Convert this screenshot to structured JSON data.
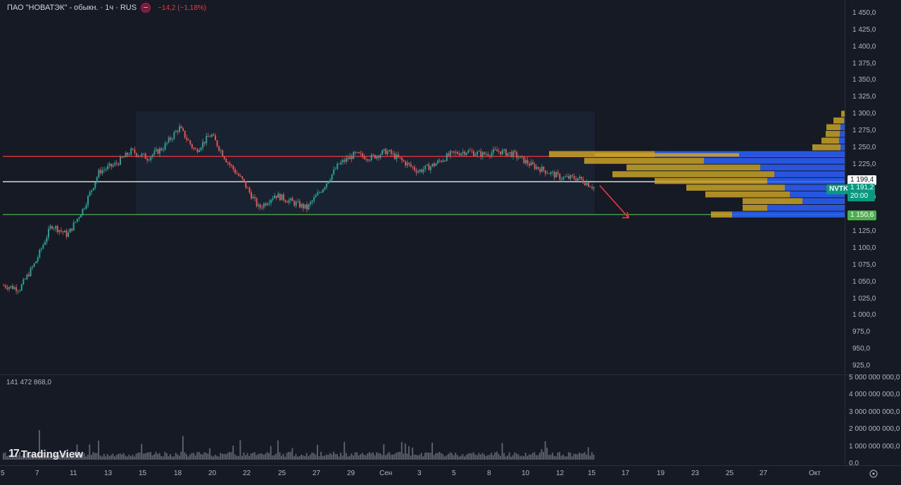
{
  "legend": {
    "title": "ПАО \"НОВАТЭК\" - обыкн. · 1ч · RUS",
    "change": "−14,2 (−1,18%)"
  },
  "volume_legend": "141 472 868,0",
  "price_axis": [
    "1 450,0",
    "1 425,0",
    "1 400,0",
    "1 375,0",
    "1 350,0",
    "1 325,0",
    "1 300,0",
    "1 275,0",
    "1 250,0",
    "1 225,0",
    "1 200,0",
    "1 175,0",
    "1 150,0",
    "1 125,0",
    "1 100,0",
    "1 075,0",
    "1 050,0",
    "1 025,0",
    "1 000,0",
    "975,0",
    "950,0",
    "925,0"
  ],
  "volume_axis": [
    "5 000 000 000,0",
    "4 000 000 000,0",
    "3 000 000 000,0",
    "2 000 000 000,0",
    "1 000 000 000,0",
    "0,0"
  ],
  "time_axis": [
    "5",
    "7",
    "11",
    "13",
    "15",
    "18",
    "20",
    "22",
    "25",
    "27",
    "29",
    "Сен",
    "3",
    "5",
    "8",
    "10",
    "12",
    "15",
    "17",
    "19",
    "23",
    "25",
    "27",
    "Окт"
  ],
  "labels": {
    "white_line": "1 199,4",
    "ticker": "NVTK",
    "last_price": "1 191,2",
    "countdown": "20:00",
    "green_line": "1 150,6"
  },
  "brand": "TradingView",
  "colors": {
    "background": "#161a25",
    "red_line": "#f23645",
    "white_line": "#ffffff",
    "green_line": "#4caf50",
    "last_price_badge": "#089981",
    "green_badge": "#4caf50",
    "vp_gold": "#c9a227",
    "vp_blue": "#2962ff"
  },
  "chart_data": {
    "type": "candlestick",
    "symbol": "NVTK",
    "timeframe": "1h",
    "ylim": [
      925,
      1450
    ],
    "horizontal_lines": [
      {
        "name": "resistance",
        "value": 1237
      },
      {
        "name": "current",
        "value": 1199.4
      },
      {
        "name": "support",
        "value": 1150.6
      }
    ],
    "range_box": {
      "from": "15",
      "to": "15 Sep",
      "low": 1150,
      "high": 1304
    },
    "close_path": [
      [
        "5",
        1045
      ],
      [
        "6",
        1040
      ],
      [
        "7",
        1080
      ],
      [
        "8",
        1135
      ],
      [
        "9",
        1120
      ],
      [
        "10",
        1160
      ],
      [
        "11",
        1215
      ],
      [
        "12",
        1225
      ],
      [
        "13",
        1245
      ],
      [
        "14",
        1235
      ],
      [
        "15",
        1250
      ],
      [
        "16",
        1280
      ],
      [
        "18",
        1245
      ],
      [
        "19",
        1270
      ],
      [
        "20",
        1230
      ],
      [
        "21",
        1200
      ],
      [
        "22",
        1160
      ],
      [
        "23",
        1180
      ],
      [
        "25",
        1170
      ],
      [
        "26",
        1160
      ],
      [
        "27",
        1190
      ],
      [
        "28",
        1225
      ],
      [
        "29",
        1240
      ],
      [
        "30",
        1235
      ],
      [
        "Сен",
        1245
      ],
      [
        "2",
        1230
      ],
      [
        "3",
        1215
      ],
      [
        "4",
        1225
      ],
      [
        "5",
        1240
      ],
      [
        "6",
        1245
      ],
      [
        "8",
        1240
      ],
      [
        "9",
        1245
      ],
      [
        "10",
        1240
      ],
      [
        "11",
        1225
      ],
      [
        "12",
        1215
      ],
      [
        "13",
        1205
      ],
      [
        "14",
        1205
      ],
      [
        "15",
        1191.2
      ]
    ],
    "last_price": 1191.2,
    "projection": {
      "from": 1199,
      "to": 1150
    },
    "volume_profile": [
      [
        1300,
        5,
        0
      ],
      [
        1290,
        15,
        1
      ],
      [
        1280,
        20,
        6
      ],
      [
        1270,
        20,
        7
      ],
      [
        1260,
        25,
        8
      ],
      [
        1250,
        40,
        6
      ],
      [
        1240,
        150,
        270
      ],
      [
        1230,
        170,
        200
      ],
      [
        1220,
        190,
        120
      ],
      [
        1210,
        230,
        100
      ],
      [
        1200,
        160,
        110
      ],
      [
        1190,
        140,
        85
      ],
      [
        1180,
        120,
        78
      ],
      [
        1170,
        85,
        60
      ],
      [
        1160,
        35,
        110
      ],
      [
        1150,
        30,
        160
      ]
    ]
  }
}
